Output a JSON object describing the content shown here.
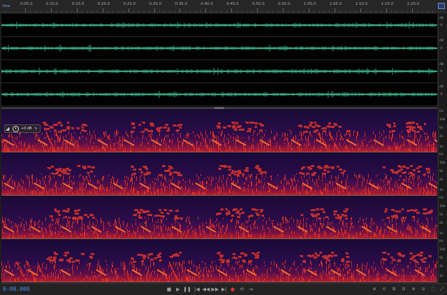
{
  "ruler": {
    "labels": [
      "0:05.0",
      "0:10.0",
      "0:15.0",
      "0:20.0",
      "0:25.0",
      "0:30.0",
      "0:35.0",
      "0:40.0",
      "0:45.0",
      "0:50.0",
      "0:55.0",
      "1:00.0",
      "1:05.0",
      "1:10.0",
      "1:15.0",
      "1:20.0"
    ],
    "zoom_label": "hms"
  },
  "waveform": {
    "channels": 4,
    "color": "#3fb88a",
    "scale_labels": [
      "dB",
      "-6",
      "dB",
      "-6",
      "dB",
      "-6",
      "dB",
      "-6"
    ]
  },
  "spectral": {
    "channels": 4,
    "scale_labels": [
      "Hz",
      "10k",
      "5k",
      "2k",
      "1k",
      "Hz",
      "10k",
      "5k",
      "2k",
      "1k",
      "Hz",
      "10k",
      "5k",
      "2k",
      "1k",
      "Hz",
      "10k",
      "5k",
      "2k",
      "1k"
    ]
  },
  "track": {
    "volume_value": "+0 dB"
  },
  "transport": {
    "time": "0:00.000",
    "buttons": [
      "stop",
      "play",
      "pause",
      "go-to-start",
      "rewind",
      "fast-forward",
      "go-to-end",
      "record",
      "loop",
      "skip"
    ]
  },
  "colors": {
    "accent": "#4f8dfa",
    "waveform": "#3fb88a",
    "spectral_bg": "#14082a",
    "spectral_hot": "#ff3a1e"
  }
}
